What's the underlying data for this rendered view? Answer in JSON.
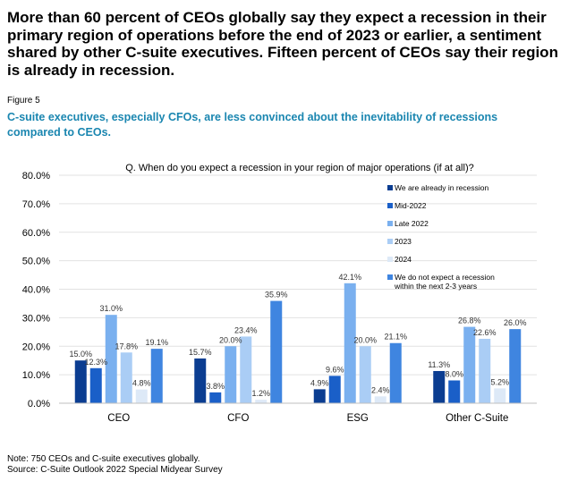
{
  "headline": "More than 60 percent of CEOs globally say they expect a recession in their primary region of operations before the end of 2023 or earlier, a sentiment shared by other C-suite executives. Fifteen percent of CEOs say their region is already in recession.",
  "figure_label": "Figure 5",
  "subtitle": "C-suite executives, especially CFOs, are less convinced about the inevitability of recessions compared to CEOs.",
  "note": "Note: 750 CEOs and C-suite executives globally.",
  "source": "Source: C-Suite Outlook 2022 Special Midyear Survey",
  "colors": {
    "already": "#0b3d91",
    "mid2022": "#1a5fc8",
    "late2022": "#7ab0ef",
    "y2023": "#aacdf5",
    "y2024": "#dde9f7",
    "none": "#3f85e0"
  },
  "chart_data": {
    "type": "bar",
    "title": "Q. When do you expect a recession in your region of major operations (if at all)?",
    "categories": [
      "CEO",
      "CFO",
      "ESG",
      "Other C-Suite"
    ],
    "ylim": [
      0,
      80
    ],
    "yticks": [
      "0.0%",
      "10.0%",
      "20.0%",
      "30.0%",
      "40.0%",
      "50.0%",
      "60.0%",
      "70.0%",
      "80.0%"
    ],
    "ytick_values": [
      0,
      10,
      20,
      30,
      40,
      50,
      60,
      70,
      80
    ],
    "legend_position": "top-right",
    "series": [
      {
        "name": "We are already in recession",
        "color_key": "already",
        "values": [
          15.0,
          15.7,
          4.9,
          11.3
        ],
        "labels": [
          "15.0%",
          "15.7%",
          "4.9%",
          "11.3%"
        ]
      },
      {
        "name": "Mid-2022",
        "color_key": "mid2022",
        "values": [
          12.3,
          3.8,
          9.6,
          8.0
        ],
        "labels": [
          "12.3%",
          "3.8%",
          "9.6%",
          "8.0%"
        ]
      },
      {
        "name": "Late 2022",
        "color_key": "late2022",
        "values": [
          31.0,
          20.0,
          42.1,
          26.8
        ],
        "labels": [
          "31.0%",
          "20.0%",
          "42.1%",
          "26.8%"
        ]
      },
      {
        "name": "2023",
        "color_key": "y2023",
        "values": [
          17.8,
          23.4,
          20.0,
          22.6
        ],
        "labels": [
          "17.8%",
          "23.4%",
          "20.0%",
          "22.6%"
        ]
      },
      {
        "name": "2024",
        "color_key": "y2024",
        "values": [
          4.8,
          1.2,
          2.4,
          5.2
        ],
        "labels": [
          "4.8%",
          "1.2%",
          "2.4%",
          "5.2%"
        ]
      },
      {
        "name": "We do not expect a recession within the next 2-3 years",
        "legend_lines": [
          "We do not expect a recession",
          "within the next 2-3 years"
        ],
        "color_key": "none",
        "values": [
          19.1,
          35.9,
          21.1,
          26.0
        ],
        "labels": [
          "19.1%",
          "35.9%",
          "21.1%",
          "26.0%"
        ]
      }
    ]
  }
}
